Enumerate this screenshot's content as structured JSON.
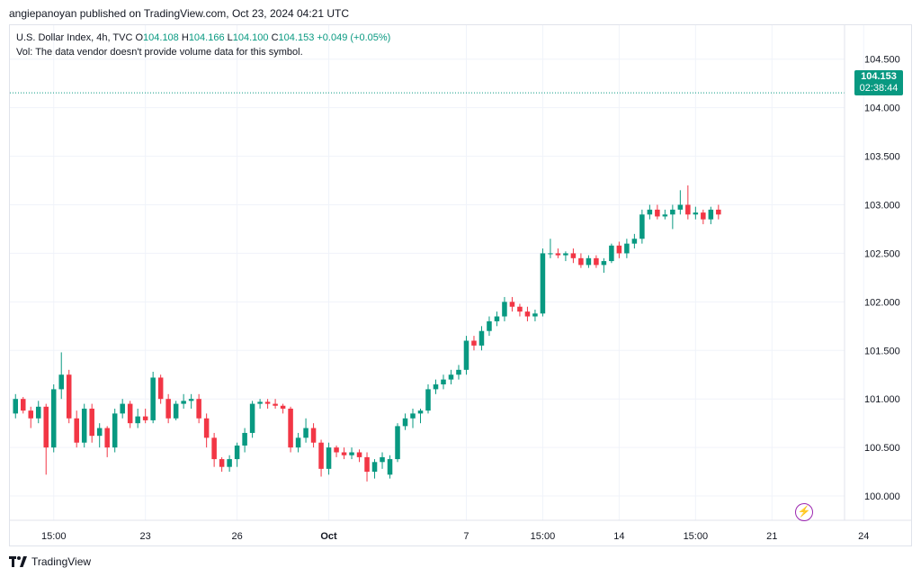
{
  "header": {
    "published": "angiepanoyan published on TradingView.com, Oct 23, 2024 04:21 UTC"
  },
  "legend": {
    "symbol": "U.S. Dollar Index, 4h, TVC",
    "o_label": "O",
    "o_value": "104.108",
    "h_label": "H",
    "h_value": "104.166",
    "l_label": "L",
    "l_value": "104.100",
    "c_label": "C",
    "c_value": "104.153",
    "change": "+0.049 (+0.05%)",
    "vol_note": "Vol: The data vendor doesn't provide volume data for this symbol."
  },
  "price_label": {
    "price": "104.153",
    "countdown": "02:38:44"
  },
  "footer": {
    "brand": "TradingView"
  },
  "colors": {
    "up": "#089981",
    "down": "#f23645",
    "grid": "#f0f3fa",
    "text": "#131722"
  },
  "icons": {
    "bolt": "lightning-bolt-icon",
    "logo": "tradingview-logo-icon"
  },
  "chart_data": {
    "type": "candlestick",
    "title": "U.S. Dollar Index, 4h, TVC",
    "y_ticks": [
      "104.500",
      "104.000",
      "103.500",
      "103.000",
      "102.500",
      "102.000",
      "101.500",
      "101.000",
      "100.500",
      "100.000"
    ],
    "y_tick_values": [
      104.5,
      104.0,
      103.5,
      103.0,
      102.5,
      102.0,
      101.5,
      101.0,
      100.5,
      100.0
    ],
    "x_ticks": [
      {
        "label": "15:00",
        "index": 5
      },
      {
        "label": "23",
        "index": 17
      },
      {
        "label": "26",
        "index": 29
      },
      {
        "label": "Oct",
        "index": 41
      },
      {
        "label": "7",
        "index": 59
      },
      {
        "label": "15:00",
        "index": 69
      },
      {
        "label": "14",
        "index": 79
      },
      {
        "label": "15:00",
        "index": 89
      },
      {
        "label": "21",
        "index": 99
      },
      {
        "label": "24",
        "index": 111
      }
    ],
    "ylim": [
      99.75,
      104.85
    ],
    "last_price": 104.153,
    "grid": true,
    "candles": [
      {
        "o": 100.85,
        "h": 101.05,
        "l": 100.8,
        "c": 101.0
      },
      {
        "o": 101.0,
        "h": 101.02,
        "l": 100.85,
        "c": 100.88
      },
      {
        "o": 100.88,
        "h": 100.92,
        "l": 100.7,
        "c": 100.8
      },
      {
        "o": 100.8,
        "h": 100.98,
        "l": 100.75,
        "c": 100.92
      },
      {
        "o": 100.92,
        "h": 100.95,
        "l": 100.22,
        "c": 100.5
      },
      {
        "o": 100.5,
        "h": 101.15,
        "l": 100.45,
        "c": 101.1
      },
      {
        "o": 101.1,
        "h": 101.48,
        "l": 101.0,
        "c": 101.25
      },
      {
        "o": 101.25,
        "h": 101.3,
        "l": 100.75,
        "c": 100.8
      },
      {
        "o": 100.8,
        "h": 100.88,
        "l": 100.5,
        "c": 100.55
      },
      {
        "o": 100.55,
        "h": 100.95,
        "l": 100.5,
        "c": 100.9
      },
      {
        "o": 100.9,
        "h": 100.95,
        "l": 100.55,
        "c": 100.62
      },
      {
        "o": 100.62,
        "h": 100.75,
        "l": 100.5,
        "c": 100.7
      },
      {
        "o": 100.7,
        "h": 100.72,
        "l": 100.4,
        "c": 100.5
      },
      {
        "o": 100.5,
        "h": 100.9,
        "l": 100.45,
        "c": 100.85
      },
      {
        "o": 100.85,
        "h": 101.0,
        "l": 100.8,
        "c": 100.95
      },
      {
        "o": 100.95,
        "h": 100.98,
        "l": 100.7,
        "c": 100.75
      },
      {
        "o": 100.75,
        "h": 100.9,
        "l": 100.7,
        "c": 100.82
      },
      {
        "o": 100.82,
        "h": 100.9,
        "l": 100.75,
        "c": 100.78
      },
      {
        "o": 100.78,
        "h": 101.28,
        "l": 100.75,
        "c": 101.22
      },
      {
        "o": 101.22,
        "h": 101.25,
        "l": 100.95,
        "c": 101.0
      },
      {
        "o": 101.0,
        "h": 101.05,
        "l": 100.75,
        "c": 100.8
      },
      {
        "o": 100.8,
        "h": 100.98,
        "l": 100.78,
        "c": 100.95
      },
      {
        "o": 100.95,
        "h": 101.05,
        "l": 100.9,
        "c": 100.98
      },
      {
        "o": 100.98,
        "h": 101.05,
        "l": 100.9,
        "c": 101.0
      },
      {
        "o": 101.0,
        "h": 101.05,
        "l": 100.75,
        "c": 100.8
      },
      {
        "o": 100.8,
        "h": 100.85,
        "l": 100.5,
        "c": 100.6
      },
      {
        "o": 100.6,
        "h": 100.65,
        "l": 100.3,
        "c": 100.38
      },
      {
        "o": 100.38,
        "h": 100.4,
        "l": 100.25,
        "c": 100.3
      },
      {
        "o": 100.3,
        "h": 100.42,
        "l": 100.25,
        "c": 100.38
      },
      {
        "o": 100.38,
        "h": 100.55,
        "l": 100.3,
        "c": 100.52
      },
      {
        "o": 100.52,
        "h": 100.7,
        "l": 100.45,
        "c": 100.65
      },
      {
        "o": 100.65,
        "h": 100.98,
        "l": 100.6,
        "c": 100.95
      },
      {
        "o": 100.95,
        "h": 101.0,
        "l": 100.9,
        "c": 100.97
      },
      {
        "o": 100.97,
        "h": 101.0,
        "l": 100.9,
        "c": 100.95
      },
      {
        "o": 100.95,
        "h": 101.0,
        "l": 100.9,
        "c": 100.93
      },
      {
        "o": 100.93,
        "h": 100.95,
        "l": 100.85,
        "c": 100.9
      },
      {
        "o": 100.9,
        "h": 100.92,
        "l": 100.45,
        "c": 100.5
      },
      {
        "o": 100.5,
        "h": 100.65,
        "l": 100.45,
        "c": 100.6
      },
      {
        "o": 100.6,
        "h": 100.8,
        "l": 100.55,
        "c": 100.7
      },
      {
        "o": 100.7,
        "h": 100.75,
        "l": 100.5,
        "c": 100.55
      },
      {
        "o": 100.55,
        "h": 100.58,
        "l": 100.2,
        "c": 100.28
      },
      {
        "o": 100.28,
        "h": 100.55,
        "l": 100.22,
        "c": 100.5
      },
      {
        "o": 100.5,
        "h": 100.52,
        "l": 100.4,
        "c": 100.45
      },
      {
        "o": 100.45,
        "h": 100.5,
        "l": 100.38,
        "c": 100.42
      },
      {
        "o": 100.42,
        "h": 100.5,
        "l": 100.38,
        "c": 100.45
      },
      {
        "o": 100.45,
        "h": 100.48,
        "l": 100.35,
        "c": 100.4
      },
      {
        "o": 100.4,
        "h": 100.45,
        "l": 100.15,
        "c": 100.25
      },
      {
        "o": 100.25,
        "h": 100.38,
        "l": 100.18,
        "c": 100.35
      },
      {
        "o": 100.35,
        "h": 100.45,
        "l": 100.28,
        "c": 100.4
      },
      {
        "o": 100.22,
        "h": 100.42,
        "l": 100.18,
        "c": 100.38
      },
      {
        "o": 100.38,
        "h": 100.75,
        "l": 100.35,
        "c": 100.72
      },
      {
        "o": 100.72,
        "h": 100.85,
        "l": 100.68,
        "c": 100.8
      },
      {
        "o": 100.8,
        "h": 100.9,
        "l": 100.7,
        "c": 100.85
      },
      {
        "o": 100.85,
        "h": 100.9,
        "l": 100.75,
        "c": 100.88
      },
      {
        "o": 100.88,
        "h": 101.15,
        "l": 100.85,
        "c": 101.1
      },
      {
        "o": 101.1,
        "h": 101.2,
        "l": 101.05,
        "c": 101.15
      },
      {
        "o": 101.15,
        "h": 101.25,
        "l": 101.1,
        "c": 101.2
      },
      {
        "o": 101.2,
        "h": 101.3,
        "l": 101.15,
        "c": 101.25
      },
      {
        "o": 101.25,
        "h": 101.35,
        "l": 101.2,
        "c": 101.3
      },
      {
        "o": 101.3,
        "h": 101.65,
        "l": 101.25,
        "c": 101.6
      },
      {
        "o": 101.6,
        "h": 101.65,
        "l": 101.5,
        "c": 101.55
      },
      {
        "o": 101.55,
        "h": 101.75,
        "l": 101.5,
        "c": 101.7
      },
      {
        "o": 101.7,
        "h": 101.85,
        "l": 101.65,
        "c": 101.8
      },
      {
        "o": 101.8,
        "h": 101.9,
        "l": 101.75,
        "c": 101.85
      },
      {
        "o": 101.85,
        "h": 102.05,
        "l": 101.8,
        "c": 102.0
      },
      {
        "o": 102.0,
        "h": 102.05,
        "l": 101.9,
        "c": 101.95
      },
      {
        "o": 101.95,
        "h": 101.98,
        "l": 101.85,
        "c": 101.9
      },
      {
        "o": 101.9,
        "h": 101.95,
        "l": 101.8,
        "c": 101.85
      },
      {
        "o": 101.85,
        "h": 101.92,
        "l": 101.8,
        "c": 101.88
      },
      {
        "o": 101.88,
        "h": 102.55,
        "l": 101.85,
        "c": 102.5
      },
      {
        "o": 102.5,
        "h": 102.65,
        "l": 102.45,
        "c": 102.5
      },
      {
        "o": 102.5,
        "h": 102.55,
        "l": 102.45,
        "c": 102.48
      },
      {
        "o": 102.48,
        "h": 102.52,
        "l": 102.42,
        "c": 102.5
      },
      {
        "o": 102.5,
        "h": 102.55,
        "l": 102.4,
        "c": 102.45
      },
      {
        "o": 102.45,
        "h": 102.5,
        "l": 102.35,
        "c": 102.38
      },
      {
        "o": 102.38,
        "h": 102.48,
        "l": 102.35,
        "c": 102.45
      },
      {
        "o": 102.45,
        "h": 102.48,
        "l": 102.35,
        "c": 102.38
      },
      {
        "o": 102.38,
        "h": 102.45,
        "l": 102.3,
        "c": 102.42
      },
      {
        "o": 102.42,
        "h": 102.6,
        "l": 102.4,
        "c": 102.58
      },
      {
        "o": 102.58,
        "h": 102.62,
        "l": 102.45,
        "c": 102.5
      },
      {
        "o": 102.5,
        "h": 102.65,
        "l": 102.45,
        "c": 102.6
      },
      {
        "o": 102.6,
        "h": 102.7,
        "l": 102.55,
        "c": 102.65
      },
      {
        "o": 102.65,
        "h": 102.95,
        "l": 102.6,
        "c": 102.9
      },
      {
        "o": 102.9,
        "h": 103.0,
        "l": 102.85,
        "c": 102.95
      },
      {
        "o": 102.95,
        "h": 103.0,
        "l": 102.85,
        "c": 102.88
      },
      {
        "o": 102.88,
        "h": 102.95,
        "l": 102.85,
        "c": 102.9
      },
      {
        "o": 102.9,
        "h": 103.0,
        "l": 102.75,
        "c": 102.95
      },
      {
        "o": 102.95,
        "h": 103.15,
        "l": 102.9,
        "c": 103.0
      },
      {
        "o": 103.0,
        "h": 103.2,
        "l": 102.85,
        "c": 102.9
      },
      {
        "o": 102.9,
        "h": 102.98,
        "l": 102.85,
        "c": 102.92
      },
      {
        "o": 102.92,
        "h": 102.95,
        "l": 102.8,
        "c": 102.85
      },
      {
        "o": 102.85,
        "h": 102.98,
        "l": 102.8,
        "c": 102.95
      },
      {
        "o": 102.95,
        "h": 103.0,
        "l": 102.85,
        "c": 102.9
      }
    ]
  }
}
